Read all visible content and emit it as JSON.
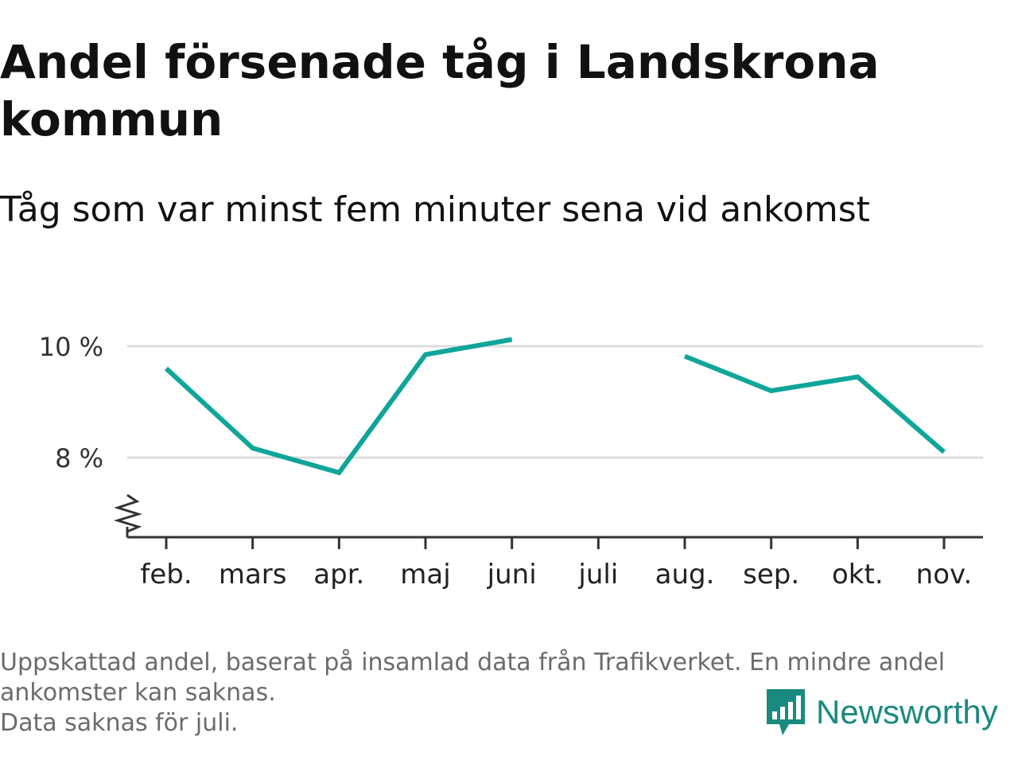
{
  "header": {
    "title": "Andel försenade tåg i Landskrona kommun",
    "subtitle": "Tåg som var minst fem minuter sena vid ankomst"
  },
  "footer": {
    "note": "Uppskattad andel, baserat på insamlad data från Trafikverket. En mindre andel ankomster kan saknas.",
    "missing": "Data saknas för juli.",
    "brand": "Newsworthy"
  },
  "colors": {
    "line": "#0fa59a",
    "grid": "#dddddd",
    "axis": "#333333",
    "text": "#111111",
    "muted": "#6b6b6b",
    "brand": "#1a8a80"
  },
  "chart_data": {
    "type": "line",
    "categories": [
      "feb.",
      "mars",
      "apr.",
      "maj",
      "juni",
      "juli",
      "aug.",
      "sep.",
      "okt.",
      "nov."
    ],
    "series": [
      {
        "values": [
          9.6,
          8.17,
          7.73,
          9.85,
          10.12,
          null,
          9.82,
          9.2,
          9.45,
          8.1
        ]
      }
    ],
    "y_ticks": [
      8,
      10
    ],
    "y_tick_labels": [
      "8 %",
      "10 %"
    ],
    "ylim": [
      6.5,
      10.5
    ],
    "y_axis_break": true,
    "grid": true,
    "legend": "none"
  }
}
